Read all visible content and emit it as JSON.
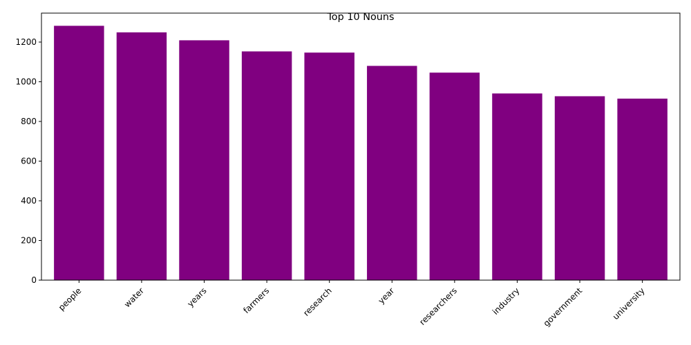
{
  "chart_data": {
    "type": "bar",
    "title": "Top 10 Nouns",
    "xlabel": "",
    "ylabel": "",
    "categories": [
      "people",
      "water",
      "years",
      "farmers",
      "research",
      "year",
      "researchers",
      "industry",
      "government",
      "university"
    ],
    "values": [
      1282,
      1249,
      1209,
      1153,
      1147,
      1080,
      1046,
      941,
      927,
      915
    ],
    "ylim": [
      0,
      1346
    ],
    "yticks": [
      0,
      200,
      400,
      600,
      800,
      1000,
      1200
    ],
    "bar_color": "#800080",
    "grid": false,
    "xtick_rotation": 45
  }
}
